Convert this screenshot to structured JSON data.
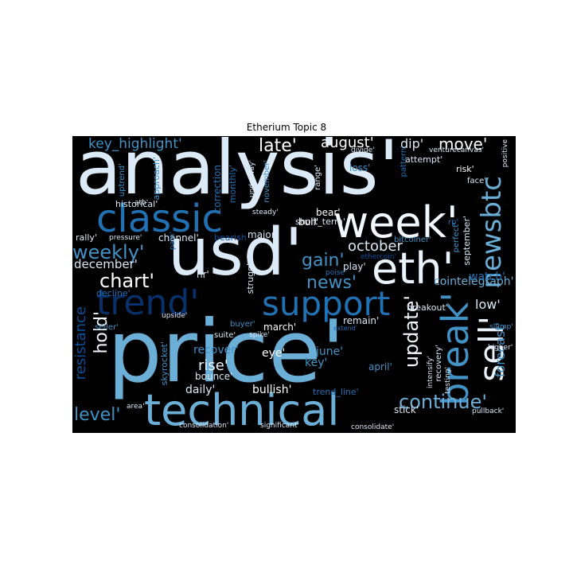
{
  "title": "Etherium Topic 8",
  "palette": {
    "background": "#000000",
    "white": "#dce9f7",
    "light": "#c6dbef",
    "sky": "#6baed6",
    "mid": "#4292c6",
    "blue": "#2171b5",
    "deep": "#08519c",
    "navy": "#08306b"
  },
  "words": [
    "analysis'",
    "usd'",
    "price'",
    "technical",
    "week'",
    "eth'",
    "classic",
    "trend'",
    "support",
    "break'",
    "sell'",
    "newsbtc",
    "weekly'",
    "chart'",
    "news'",
    "update'",
    "continue'",
    "hold'",
    "level'",
    "resistance",
    "forecast'",
    "late'",
    "august'",
    "move'",
    "october",
    "gain'",
    "key_highlight'",
    "december'",
    "cointelegraph'",
    "low'",
    "watch'",
    "rise'",
    "recover'",
    "bullish'",
    "daily'",
    "bounce'",
    "eye'",
    "june'",
    "key'",
    "april'",
    "march'",
    "remain'",
    "breakout'",
    "major'",
    "channel'",
    "bearish",
    "historical'",
    "rally'",
    "decline'",
    "uptrend'",
    "approach'",
    "correction",
    "monthly'",
    "struggle'",
    "november'",
    "short_term'",
    "loss'",
    "attempt'",
    "dip'",
    "risk'",
    "face'",
    "range'",
    "bull'",
    "bear'",
    "play'",
    "poise'",
    "pattern'",
    "september'",
    "perfect'",
    "rp'",
    "bitcoiner'",
    "ethercoin'",
    "suite'",
    "buyer'",
    "skyrocket'",
    "stick'",
    "recovery'",
    "intensify'",
    "testing'",
    "higher'",
    "slump'",
    "pullback'",
    "trend_line'",
    "spike'",
    "extend'",
    "seller'",
    "upside'",
    "path'",
    "pressure'",
    "steady'",
    "underway'",
    "venturecanvas'",
    "divide'",
    "positive",
    "consolidation'",
    "significant'",
    "consolidate'",
    "area'",
    "ath'",
    "hr'"
  ]
}
